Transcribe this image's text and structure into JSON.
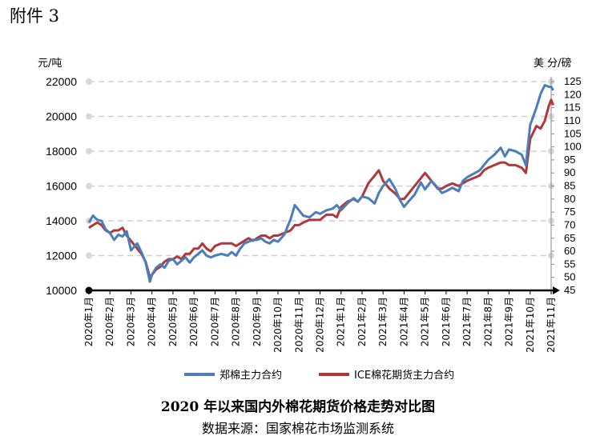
{
  "header": "附件 3",
  "chart_data": {
    "type": "line",
    "title": "2020 年以来国内外棉花期货价格走势对比图",
    "source": "数据来源：国家棉花市场监测系统",
    "left_unit": "元/吨",
    "right_unit": "美 分/磅",
    "left_axis": {
      "ylim": [
        10000,
        22000
      ],
      "ticks": [
        "10000",
        "12000",
        "14000",
        "16000",
        "18000",
        "20000",
        "22000"
      ]
    },
    "right_axis": {
      "ylim": [
        45,
        125
      ],
      "ticks": [
        "45",
        "50",
        "55",
        "60",
        "65",
        "70",
        "75",
        "80",
        "85",
        "90",
        "95",
        "100",
        "105",
        "110",
        "115",
        "120",
        "125"
      ]
    },
    "grid": true,
    "legend_position": "bottom",
    "x": [
      "2020年1月",
      "2020年2月",
      "2020年3月",
      "2020年4月",
      "2020年5月",
      "2020年6月",
      "2020年7月",
      "2020年8月",
      "2020年9月",
      "2020年10月",
      "2020年11月",
      "2020年12月",
      "2021年1月",
      "2021年2月",
      "2021年3月",
      "2021年4月",
      "2021年5月",
      "2021年6月",
      "2021年7月",
      "2021年8月",
      "2021年9月",
      "2021年10月",
      "2021年11月"
    ],
    "series": [
      {
        "name": "郑棉主力合约",
        "axis": "left",
        "color": "#4a7ebb",
        "values": [
          [
            0,
            13900
          ],
          [
            0.2,
            14300
          ],
          [
            0.4,
            14050
          ],
          [
            0.6,
            14000
          ],
          [
            0.8,
            13500
          ],
          [
            1,
            13300
          ],
          [
            1.2,
            12900
          ],
          [
            1.4,
            13200
          ],
          [
            1.6,
            13100
          ],
          [
            1.8,
            13400
          ],
          [
            2,
            12300
          ],
          [
            2.3,
            12700
          ],
          [
            2.5,
            12200
          ],
          [
            2.7,
            11600
          ],
          [
            2.9,
            10500
          ],
          [
            3,
            10900
          ],
          [
            3.2,
            11300
          ],
          [
            3.4,
            11500
          ],
          [
            3.6,
            11300
          ],
          [
            3.8,
            11700
          ],
          [
            4,
            11800
          ],
          [
            4.2,
            11500
          ],
          [
            4.4,
            11700
          ],
          [
            4.6,
            11900
          ],
          [
            4.8,
            11600
          ],
          [
            5,
            11900
          ],
          [
            5.2,
            12100
          ],
          [
            5.4,
            12300
          ],
          [
            5.6,
            12000
          ],
          [
            5.8,
            11900
          ],
          [
            6,
            12000
          ],
          [
            6.3,
            12100
          ],
          [
            6.6,
            12000
          ],
          [
            6.8,
            12200
          ],
          [
            7,
            12000
          ],
          [
            7.2,
            12400
          ],
          [
            7.4,
            12700
          ],
          [
            7.6,
            12800
          ],
          [
            7.8,
            12900
          ],
          [
            8,
            12900
          ],
          [
            8.2,
            13000
          ],
          [
            8.4,
            12800
          ],
          [
            8.6,
            12700
          ],
          [
            8.8,
            12900
          ],
          [
            9,
            12800
          ],
          [
            9.3,
            13200
          ],
          [
            9.6,
            14100
          ],
          [
            9.8,
            14900
          ],
          [
            10,
            14600
          ],
          [
            10.2,
            14300
          ],
          [
            10.5,
            14200
          ],
          [
            10.8,
            14500
          ],
          [
            11,
            14400
          ],
          [
            11.3,
            14600
          ],
          [
            11.6,
            14700
          ],
          [
            11.8,
            14900
          ],
          [
            12,
            14600
          ],
          [
            12.3,
            15000
          ],
          [
            12.6,
            15300
          ],
          [
            12.8,
            15100
          ],
          [
            13,
            15400
          ],
          [
            13.3,
            15300
          ],
          [
            13.6,
            15000
          ],
          [
            13.8,
            15600
          ],
          [
            14,
            16000
          ],
          [
            14.3,
            16400
          ],
          [
            14.6,
            15800
          ],
          [
            14.8,
            15200
          ],
          [
            15,
            14800
          ],
          [
            15.2,
            15100
          ],
          [
            15.5,
            15500
          ],
          [
            15.8,
            16200
          ],
          [
            16,
            15800
          ],
          [
            16.3,
            16300
          ],
          [
            16.6,
            15900
          ],
          [
            16.8,
            15600
          ],
          [
            17,
            15700
          ],
          [
            17.3,
            15900
          ],
          [
            17.6,
            15700
          ],
          [
            17.8,
            16300
          ],
          [
            18,
            16500
          ],
          [
            18.3,
            16700
          ],
          [
            18.6,
            16900
          ],
          [
            18.8,
            17200
          ],
          [
            19,
            17500
          ],
          [
            19.3,
            17800
          ],
          [
            19.6,
            18200
          ],
          [
            19.8,
            17700
          ],
          [
            20,
            18100
          ],
          [
            20.3,
            18000
          ],
          [
            20.6,
            17800
          ],
          [
            20.8,
            17200
          ],
          [
            21,
            19500
          ],
          [
            21.3,
            20500
          ],
          [
            21.5,
            21300
          ],
          [
            21.7,
            21800
          ],
          [
            21.9,
            21700
          ],
          [
            22,
            21700
          ],
          [
            22.1,
            21500
          ]
        ]
      },
      {
        "name": "ICE棉花期货主力合约",
        "axis": "right",
        "color": "#b0373a",
        "values": [
          [
            0,
            69
          ],
          [
            0.2,
            70
          ],
          [
            0.4,
            71
          ],
          [
            0.6,
            70
          ],
          [
            0.8,
            68
          ],
          [
            1,
            67
          ],
          [
            1.2,
            68
          ],
          [
            1.4,
            68
          ],
          [
            1.6,
            69
          ],
          [
            1.8,
            66
          ],
          [
            2,
            64
          ],
          [
            2.3,
            61
          ],
          [
            2.5,
            59
          ],
          [
            2.7,
            56
          ],
          [
            2.9,
            50
          ],
          [
            3,
            51
          ],
          [
            3.2,
            53
          ],
          [
            3.4,
            54
          ],
          [
            3.6,
            56
          ],
          [
            3.8,
            57
          ],
          [
            4,
            57
          ],
          [
            4.2,
            58
          ],
          [
            4.4,
            57
          ],
          [
            4.6,
            59
          ],
          [
            4.8,
            59
          ],
          [
            5,
            61
          ],
          [
            5.2,
            61
          ],
          [
            5.4,
            63
          ],
          [
            5.6,
            61
          ],
          [
            5.8,
            60
          ],
          [
            6,
            62
          ],
          [
            6.3,
            63
          ],
          [
            6.6,
            63
          ],
          [
            6.8,
            63
          ],
          [
            7,
            62
          ],
          [
            7.2,
            63
          ],
          [
            7.4,
            64
          ],
          [
            7.6,
            65
          ],
          [
            7.8,
            64
          ],
          [
            8,
            65
          ],
          [
            8.2,
            66
          ],
          [
            8.4,
            66
          ],
          [
            8.6,
            65
          ],
          [
            8.8,
            66
          ],
          [
            9,
            66
          ],
          [
            9.3,
            67
          ],
          [
            9.6,
            68
          ],
          [
            9.8,
            70
          ],
          [
            10,
            70
          ],
          [
            10.2,
            71
          ],
          [
            10.5,
            72
          ],
          [
            10.8,
            72
          ],
          [
            11,
            72
          ],
          [
            11.3,
            74
          ],
          [
            11.6,
            74
          ],
          [
            11.8,
            73
          ],
          [
            12,
            77
          ],
          [
            12.3,
            79
          ],
          [
            12.6,
            80
          ],
          [
            12.8,
            79
          ],
          [
            13,
            81
          ],
          [
            13.3,
            86
          ],
          [
            13.6,
            89
          ],
          [
            13.8,
            91
          ],
          [
            14,
            87
          ],
          [
            14.3,
            84
          ],
          [
            14.6,
            82
          ],
          [
            14.8,
            80
          ],
          [
            15,
            80
          ],
          [
            15.2,
            82
          ],
          [
            15.5,
            85
          ],
          [
            15.8,
            88
          ],
          [
            16,
            90
          ],
          [
            16.3,
            87
          ],
          [
            16.6,
            84
          ],
          [
            16.8,
            84
          ],
          [
            17,
            85
          ],
          [
            17.3,
            86
          ],
          [
            17.6,
            85
          ],
          [
            17.8,
            86
          ],
          [
            18,
            87
          ],
          [
            18.3,
            88
          ],
          [
            18.6,
            89
          ],
          [
            18.8,
            91
          ],
          [
            19,
            92
          ],
          [
            19.3,
            93
          ],
          [
            19.6,
            94
          ],
          [
            19.8,
            94
          ],
          [
            20,
            93
          ],
          [
            20.3,
            93
          ],
          [
            20.6,
            92
          ],
          [
            20.8,
            90
          ],
          [
            21,
            103
          ],
          [
            21.3,
            108
          ],
          [
            21.5,
            107
          ],
          [
            21.7,
            110
          ],
          [
            21.9,
            116
          ],
          [
            22,
            118
          ],
          [
            22.1,
            116
          ]
        ]
      }
    ]
  }
}
